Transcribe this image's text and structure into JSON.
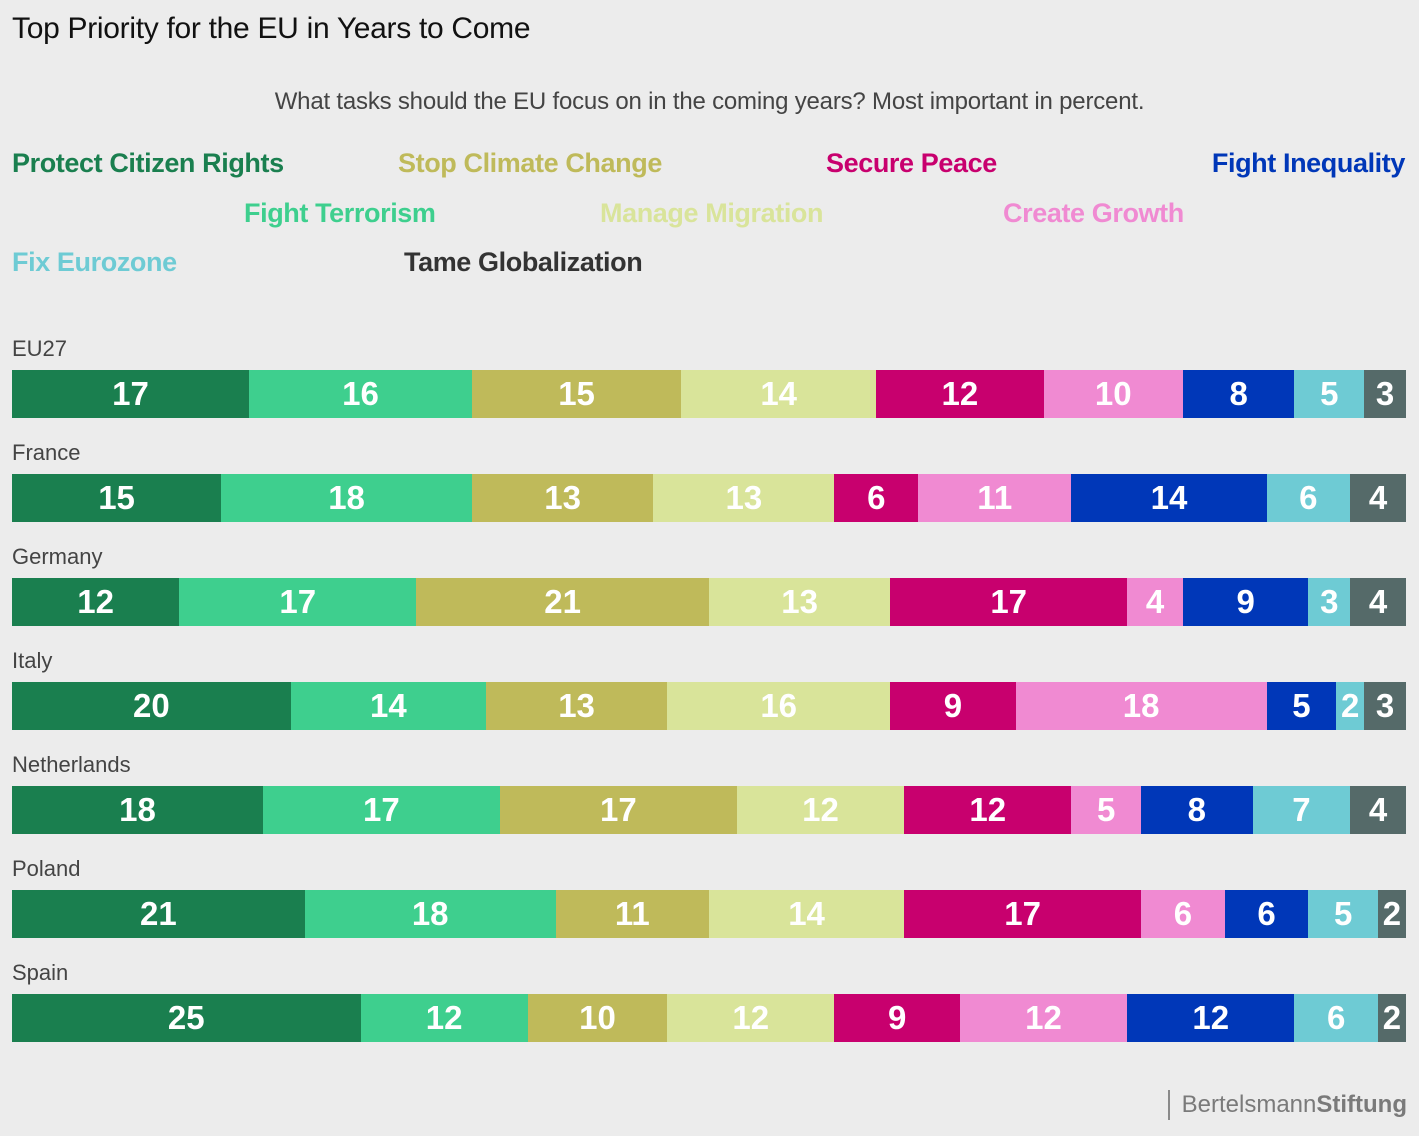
{
  "chart_data": {
    "type": "bar",
    "orientation": "horizontal",
    "stacked": true,
    "title": "Top Priority for the EU in Years to Come",
    "subtitle": "What tasks should the EU focus on in the coming years? Most important in percent.",
    "xlabel": "",
    "ylabel": "",
    "xlim": [
      0,
      100
    ],
    "grid": false,
    "legend_position": "top",
    "categories": [
      "EU27",
      "France",
      "Germany",
      "Italy",
      "Netherlands",
      "Poland",
      "Spain"
    ],
    "series": [
      {
        "name": "Protect Citizen Rights",
        "color": "#1a7f4f",
        "values": [
          17,
          15,
          12,
          20,
          18,
          21,
          25
        ]
      },
      {
        "name": "Fight Terrorism",
        "color": "#3ecf8e",
        "values": [
          16,
          18,
          17,
          14,
          17,
          18,
          12
        ]
      },
      {
        "name": "Stop Climate Change",
        "color": "#bfba5a",
        "values": [
          15,
          13,
          21,
          13,
          17,
          11,
          10
        ]
      },
      {
        "name": "Manage Migration",
        "color": "#d9e49a",
        "values": [
          14,
          13,
          13,
          16,
          12,
          14,
          12
        ]
      },
      {
        "name": "Secure Peace",
        "color": "#c8006e",
        "values": [
          12,
          6,
          17,
          9,
          12,
          17,
          9
        ]
      },
      {
        "name": "Create Growth",
        "color": "#f08ad2",
        "values": [
          10,
          11,
          4,
          18,
          5,
          6,
          12
        ]
      },
      {
        "name": "Fight Inequality",
        "color": "#0037b8",
        "values": [
          8,
          14,
          9,
          5,
          8,
          6,
          12
        ]
      },
      {
        "name": "Fix Eurozone",
        "color": "#6ecbd4",
        "values": [
          5,
          6,
          3,
          2,
          7,
          5,
          6
        ]
      },
      {
        "name": "Tame Globalization",
        "color": "#556a69",
        "values": [
          3,
          4,
          4,
          3,
          4,
          2,
          2
        ]
      }
    ]
  },
  "legend": [
    {
      "label": "Protect Citizen Rights",
      "color": "#1a7f4f"
    },
    {
      "label": "Stop Climate Change",
      "color": "#bfba5a"
    },
    {
      "label": "Secure Peace",
      "color": "#c8006e"
    },
    {
      "label": "Fight Inequality",
      "color": "#0037b8"
    },
    {
      "label": "Fight Terrorism",
      "color": "#3ecf8e"
    },
    {
      "label": "Manage Migration",
      "color": "#d9e49a"
    },
    {
      "label": "Create Growth",
      "color": "#f08ad2"
    },
    {
      "label": "Fix Eurozone",
      "color": "#6ecbd4"
    },
    {
      "label": "Tame Globalization",
      "color": "#333333"
    }
  ],
  "footer": {
    "brand_light": "Bertelsmann",
    "brand_bold": "Stiftung"
  }
}
